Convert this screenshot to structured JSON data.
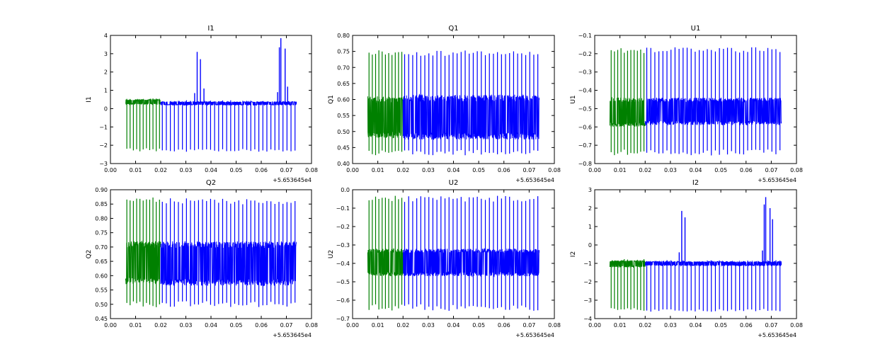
{
  "colors": {
    "series_a": "#008000",
    "series_b": "#0000ff",
    "axes": "#000000",
    "background": "#ffffff"
  },
  "chart_data": [
    {
      "type": "line",
      "title": "I1",
      "ylabel": "I1",
      "xlabel": "",
      "xlim": [
        0.0,
        0.08
      ],
      "ylim": [
        -3,
        4
      ],
      "x_offset_label": "+5.653645e4",
      "xticks": [
        "0.00",
        "0.01",
        "0.02",
        "0.03",
        "0.04",
        "0.05",
        "0.06",
        "0.07",
        "0.08"
      ],
      "yticks": [
        "−3",
        "−2",
        "−1",
        "0",
        "1",
        "2",
        "3",
        "4"
      ],
      "grid": false,
      "legend": "none",
      "series": [
        {
          "x_range": [
            0.006,
            0.02
          ],
          "band": [
            0.24,
            0.5
          ],
          "spike_high": 0.5,
          "spike_low": -2.25,
          "spike_period": 0.0013
        },
        {
          "x_range": [
            0.02,
            0.074
          ],
          "band": [
            0.2,
            0.38
          ],
          "spike_high": 0.38,
          "spike_low": -2.28,
          "spike_period": 0.0016,
          "peaks": [
            [
              0.0345,
              3.1
            ],
            [
              0.0358,
              2.7
            ],
            [
              0.0372,
              1.1
            ],
            [
              0.0335,
              0.85
            ],
            [
              0.0672,
              3.35
            ],
            [
              0.0678,
              3.85
            ],
            [
              0.0695,
              3.28
            ],
            [
              0.0665,
              0.9
            ],
            [
              0.0705,
              1.2
            ]
          ]
        }
      ]
    },
    {
      "type": "line",
      "title": "Q1",
      "ylabel": "Q1",
      "xlabel": "",
      "xlim": [
        0.0,
        0.08
      ],
      "ylim": [
        0.4,
        0.8
      ],
      "x_offset_label": "+5.653645e4",
      "xticks": [
        "0.00",
        "0.01",
        "0.02",
        "0.03",
        "0.04",
        "0.05",
        "0.06",
        "0.07",
        "0.08"
      ],
      "yticks": [
        "0.40",
        "0.45",
        "0.50",
        "0.55",
        "0.60",
        "0.65",
        "0.70",
        "0.75",
        "0.80"
      ],
      "grid": false,
      "legend": "none",
      "series": [
        {
          "x_range": [
            0.006,
            0.02
          ],
          "band": [
            0.48,
            0.61
          ],
          "spike_high": 0.745,
          "spike_low": 0.435,
          "spike_period": 0.0013
        },
        {
          "x_range": [
            0.02,
            0.074
          ],
          "band": [
            0.475,
            0.615
          ],
          "spike_high": 0.745,
          "spike_low": 0.435,
          "spike_period": 0.0016
        }
      ]
    },
    {
      "type": "line",
      "title": "U1",
      "ylabel": "U1",
      "xlabel": "",
      "xlim": [
        0.0,
        0.08
      ],
      "ylim": [
        -0.8,
        -0.1
      ],
      "x_offset_label": "+5.653645e4",
      "xticks": [
        "0.00",
        "0.01",
        "0.02",
        "0.03",
        "0.04",
        "0.05",
        "0.06",
        "0.07",
        "0.08"
      ],
      "yticks": [
        "−0.8",
        "−0.7",
        "−0.6",
        "−0.5",
        "−0.4",
        "−0.3",
        "−0.2",
        "−0.1"
      ],
      "grid": false,
      "legend": "none",
      "series": [
        {
          "x_range": [
            0.006,
            0.02
          ],
          "band": [
            -0.6,
            -0.44
          ],
          "spike_high": -0.18,
          "spike_low": -0.74,
          "spike_period": 0.0013
        },
        {
          "x_range": [
            0.02,
            0.074
          ],
          "band": [
            -0.59,
            -0.44
          ],
          "spike_high": -0.18,
          "spike_low": -0.74,
          "spike_period": 0.0016
        }
      ]
    },
    {
      "type": "line",
      "title": "Q2",
      "ylabel": "Q2",
      "xlabel": "",
      "xlim": [
        0.0,
        0.08
      ],
      "ylim": [
        0.45,
        0.9
      ],
      "x_offset_label": "+5.653645e4",
      "xticks": [
        "0.00",
        "0.01",
        "0.02",
        "0.03",
        "0.04",
        "0.05",
        "0.06",
        "0.07",
        "0.08"
      ],
      "yticks": [
        "0.45",
        "0.50",
        "0.55",
        "0.60",
        "0.65",
        "0.70",
        "0.75",
        "0.80",
        "0.85",
        "0.90"
      ],
      "grid": false,
      "legend": "none",
      "series": [
        {
          "x_range": [
            0.006,
            0.02
          ],
          "band": [
            0.57,
            0.72
          ],
          "spike_high": 0.865,
          "spike_low": 0.5,
          "spike_period": 0.0013
        },
        {
          "x_range": [
            0.02,
            0.074
          ],
          "band": [
            0.565,
            0.72
          ],
          "spike_high": 0.86,
          "spike_low": 0.5,
          "spike_period": 0.0016
        }
      ]
    },
    {
      "type": "line",
      "title": "U2",
      "ylabel": "U2",
      "xlabel": "",
      "xlim": [
        0.0,
        0.08
      ],
      "ylim": [
        -0.7,
        0.0
      ],
      "x_offset_label": "+5.653645e4",
      "xticks": [
        "0.00",
        "0.01",
        "0.02",
        "0.03",
        "0.04",
        "0.05",
        "0.06",
        "0.07",
        "0.08"
      ],
      "yticks": [
        "−0.7",
        "−0.6",
        "−0.5",
        "−0.4",
        "−0.3",
        "−0.2",
        "−0.1",
        "0.0"
      ],
      "grid": false,
      "legend": "none",
      "series": [
        {
          "x_range": [
            0.006,
            0.02
          ],
          "band": [
            -0.47,
            -0.32
          ],
          "spike_high": -0.05,
          "spike_low": -0.64,
          "spike_period": 0.0013
        },
        {
          "x_range": [
            0.02,
            0.074
          ],
          "band": [
            -0.47,
            -0.32
          ],
          "spike_high": -0.05,
          "spike_low": -0.64,
          "spike_period": 0.0016
        }
      ]
    },
    {
      "type": "line",
      "title": "I2",
      "ylabel": "I2",
      "xlabel": "",
      "xlim": [
        0.0,
        0.08
      ],
      "ylim": [
        -4,
        3
      ],
      "x_offset_label": "+5.653645e4",
      "xticks": [
        "0.00",
        "0.01",
        "0.02",
        "0.03",
        "0.04",
        "0.05",
        "0.06",
        "0.07",
        "0.08"
      ],
      "yticks": [
        "−4",
        "−3",
        "−2",
        "−1",
        "0",
        "1",
        "2",
        "3"
      ],
      "grid": false,
      "legend": "none",
      "series": [
        {
          "x_range": [
            0.006,
            0.02
          ],
          "band": [
            -1.2,
            -0.85
          ],
          "spike_high": -0.85,
          "spike_low": -3.5,
          "spike_period": 0.0013
        },
        {
          "x_range": [
            0.02,
            0.074
          ],
          "band": [
            -1.12,
            -0.9
          ],
          "spike_high": -0.9,
          "spike_low": -3.55,
          "spike_period": 0.0016,
          "peaks": [
            [
              0.0345,
              1.85
            ],
            [
              0.0358,
              1.5
            ],
            [
              0.0335,
              -0.4
            ],
            [
              0.0672,
              2.2
            ],
            [
              0.0678,
              2.6
            ],
            [
              0.0695,
              2.0
            ],
            [
              0.0705,
              1.4
            ],
            [
              0.0665,
              -0.3
            ]
          ]
        }
      ]
    }
  ]
}
